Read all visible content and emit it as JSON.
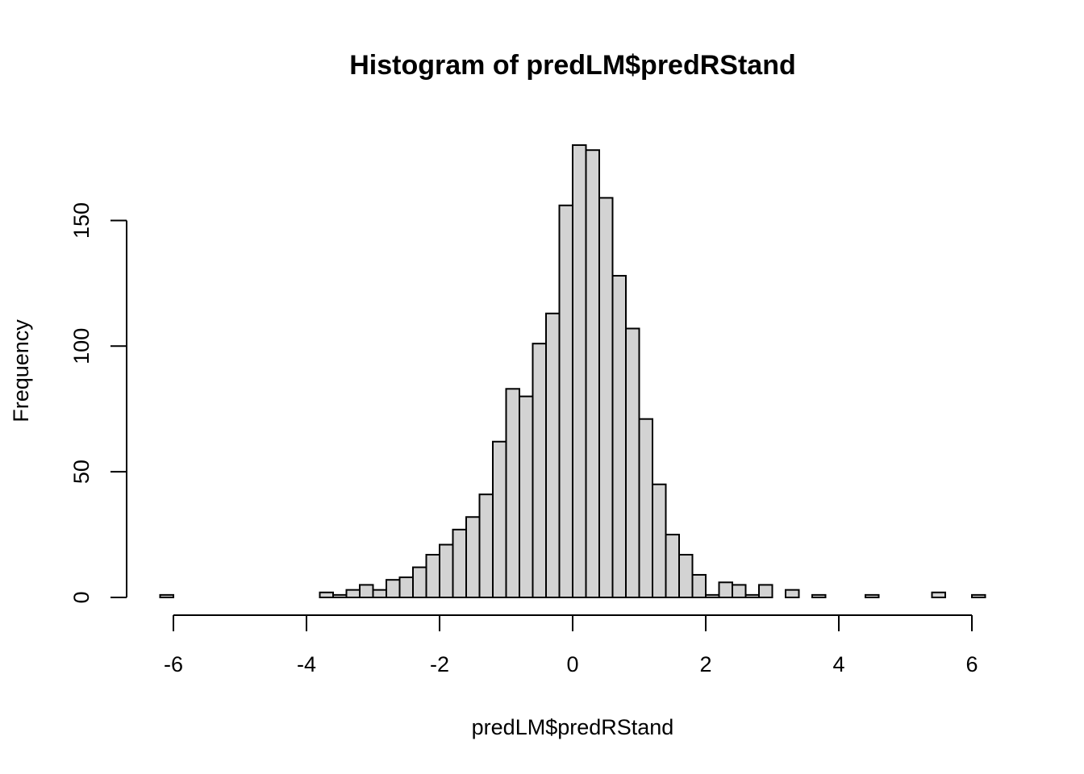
{
  "colors": {
    "bar_fill": "#d3d3d3",
    "bar_stroke": "#000000",
    "background": "#ffffff"
  },
  "chart_data": {
    "type": "bar",
    "title": "Histogram of predLM$predRStand",
    "xlabel": "predLM$predRStand",
    "ylabel": "Frequency",
    "xlim": [
      -6.2,
      6.2
    ],
    "ylim": [
      0,
      180
    ],
    "grid": false,
    "x_ticks": [
      -6,
      -4,
      -2,
      0,
      2,
      4,
      6
    ],
    "y_ticks": [
      0,
      50,
      100,
      150
    ],
    "bin_width": 0.2,
    "bins": [
      {
        "x0": -6.2,
        "x1": -6.0,
        "count": 1
      },
      {
        "x0": -6.0,
        "x1": -5.8,
        "count": 0
      },
      {
        "x0": -5.8,
        "x1": -5.6,
        "count": 0
      },
      {
        "x0": -5.6,
        "x1": -5.4,
        "count": 0
      },
      {
        "x0": -5.4,
        "x1": -5.2,
        "count": 0
      },
      {
        "x0": -5.2,
        "x1": -5.0,
        "count": 0
      },
      {
        "x0": -5.0,
        "x1": -4.8,
        "count": 0
      },
      {
        "x0": -4.8,
        "x1": -4.6,
        "count": 0
      },
      {
        "x0": -4.6,
        "x1": -4.4,
        "count": 0
      },
      {
        "x0": -4.4,
        "x1": -4.2,
        "count": 0
      },
      {
        "x0": -4.2,
        "x1": -4.0,
        "count": 0
      },
      {
        "x0": -4.0,
        "x1": -3.8,
        "count": 0
      },
      {
        "x0": -3.8,
        "x1": -3.6,
        "count": 2
      },
      {
        "x0": -3.6,
        "x1": -3.4,
        "count": 1
      },
      {
        "x0": -3.4,
        "x1": -3.2,
        "count": 3
      },
      {
        "x0": -3.2,
        "x1": -3.0,
        "count": 5
      },
      {
        "x0": -3.0,
        "x1": -2.8,
        "count": 3
      },
      {
        "x0": -2.8,
        "x1": -2.6,
        "count": 7
      },
      {
        "x0": -2.6,
        "x1": -2.4,
        "count": 8
      },
      {
        "x0": -2.4,
        "x1": -2.2,
        "count": 12
      },
      {
        "x0": -2.2,
        "x1": -2.0,
        "count": 17
      },
      {
        "x0": -2.0,
        "x1": -1.8,
        "count": 21
      },
      {
        "x0": -1.8,
        "x1": -1.6,
        "count": 27
      },
      {
        "x0": -1.6,
        "x1": -1.4,
        "count": 32
      },
      {
        "x0": -1.4,
        "x1": -1.2,
        "count": 41
      },
      {
        "x0": -1.2,
        "x1": -1.0,
        "count": 62
      },
      {
        "x0": -1.0,
        "x1": -0.8,
        "count": 83
      },
      {
        "x0": -0.8,
        "x1": -0.6,
        "count": 80
      },
      {
        "x0": -0.6,
        "x1": -0.4,
        "count": 101
      },
      {
        "x0": -0.4,
        "x1": -0.2,
        "count": 113
      },
      {
        "x0": -0.2,
        "x1": 0.0,
        "count": 156
      },
      {
        "x0": 0.0,
        "x1": 0.2,
        "count": 180
      },
      {
        "x0": 0.2,
        "x1": 0.4,
        "count": 178
      },
      {
        "x0": 0.4,
        "x1": 0.6,
        "count": 159
      },
      {
        "x0": 0.6,
        "x1": 0.8,
        "count": 128
      },
      {
        "x0": 0.8,
        "x1": 1.0,
        "count": 107
      },
      {
        "x0": 1.0,
        "x1": 1.2,
        "count": 71
      },
      {
        "x0": 1.2,
        "x1": 1.4,
        "count": 45
      },
      {
        "x0": 1.4,
        "x1": 1.6,
        "count": 25
      },
      {
        "x0": 1.6,
        "x1": 1.8,
        "count": 17
      },
      {
        "x0": 1.8,
        "x1": 2.0,
        "count": 9
      },
      {
        "x0": 2.0,
        "x1": 2.2,
        "count": 1
      },
      {
        "x0": 2.2,
        "x1": 2.4,
        "count": 6
      },
      {
        "x0": 2.4,
        "x1": 2.6,
        "count": 5
      },
      {
        "x0": 2.6,
        "x1": 2.8,
        "count": 1
      },
      {
        "x0": 2.8,
        "x1": 3.0,
        "count": 5
      },
      {
        "x0": 3.0,
        "x1": 3.2,
        "count": 0
      },
      {
        "x0": 3.2,
        "x1": 3.4,
        "count": 3
      },
      {
        "x0": 3.4,
        "x1": 3.6,
        "count": 0
      },
      {
        "x0": 3.6,
        "x1": 3.8,
        "count": 1
      },
      {
        "x0": 3.8,
        "x1": 4.0,
        "count": 0
      },
      {
        "x0": 4.0,
        "x1": 4.2,
        "count": 0
      },
      {
        "x0": 4.2,
        "x1": 4.4,
        "count": 0
      },
      {
        "x0": 4.4,
        "x1": 4.6,
        "count": 1
      },
      {
        "x0": 4.6,
        "x1": 4.8,
        "count": 0
      },
      {
        "x0": 4.8,
        "x1": 5.0,
        "count": 0
      },
      {
        "x0": 5.0,
        "x1": 5.2,
        "count": 0
      },
      {
        "x0": 5.2,
        "x1": 5.4,
        "count": 0
      },
      {
        "x0": 5.4,
        "x1": 5.6,
        "count": 2
      },
      {
        "x0": 5.6,
        "x1": 5.8,
        "count": 0
      },
      {
        "x0": 5.8,
        "x1": 6.0,
        "count": 0
      },
      {
        "x0": 6.0,
        "x1": 6.2,
        "count": 1
      }
    ]
  }
}
